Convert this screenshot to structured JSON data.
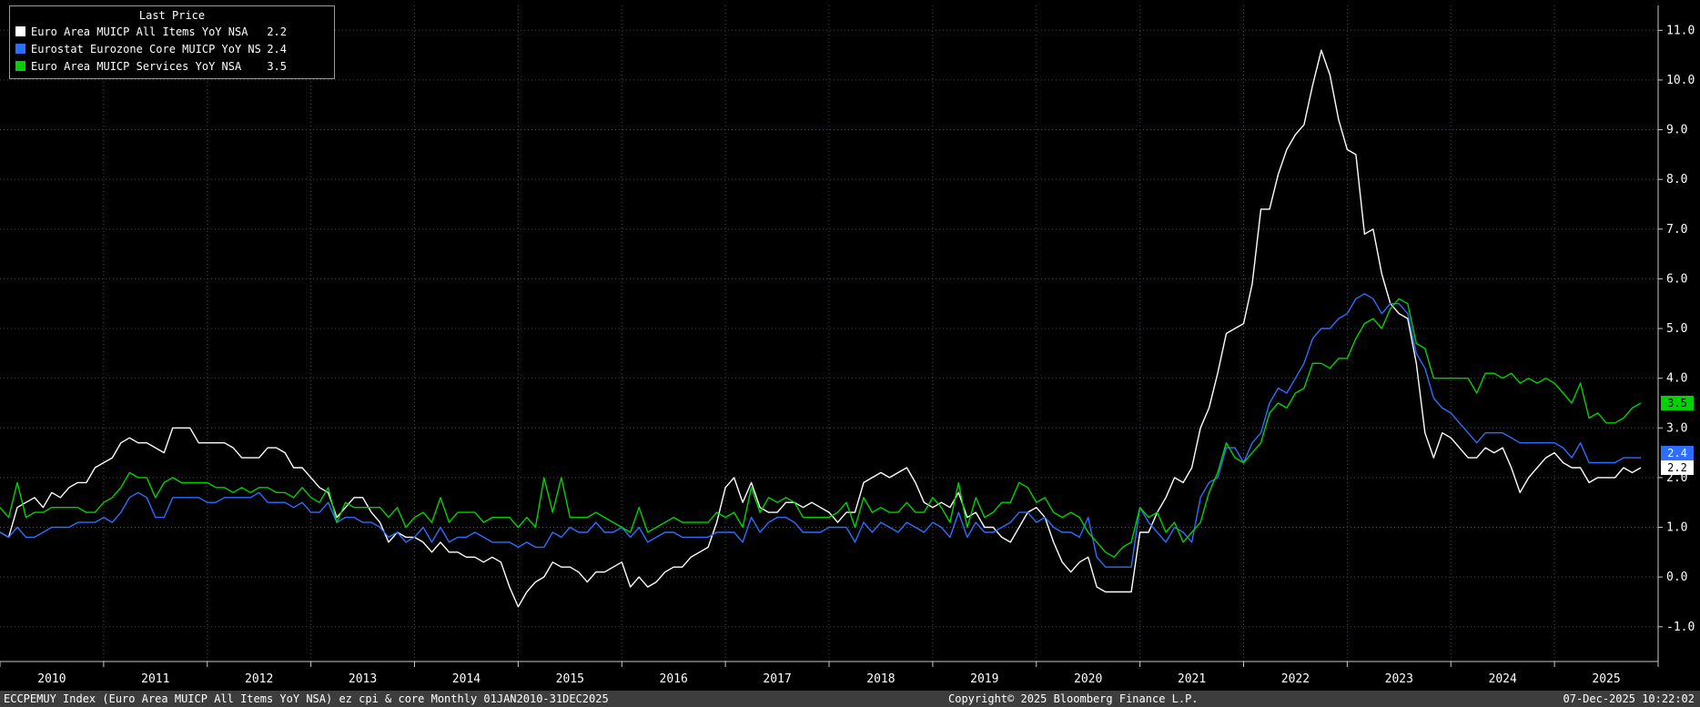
{
  "legend": {
    "title": "Last Price",
    "items": [
      {
        "label": "Euro Area MUICP All Items YoY NSA",
        "value": "2.2",
        "color": "#ffffff"
      },
      {
        "label": "Eurostat Eurozone Core MUICP YoY NSA",
        "value": "2.4",
        "color": "#2d6eff"
      },
      {
        "label": "Euro Area MUICP Services YoY NSA",
        "value": "3.5",
        "color": "#00d300"
      }
    ]
  },
  "price_labels": [
    {
      "text": "3.5",
      "value": 3.5,
      "bg": "#00d300",
      "fg": "#000000"
    },
    {
      "text": "2.4",
      "value": 2.4,
      "bg": "#2d6eff",
      "fg": "#ffffff"
    },
    {
      "text": "2.2",
      "value": 2.2,
      "bg": "#ffffff",
      "fg": "#000000"
    }
  ],
  "footer": {
    "left": "ECCPEMUY Index (Euro Area MUICP All Items YoY NSA) ez cpi & core Monthly 01JAN2010-31DEC2025",
    "copyright": "Copyright© 2025 Bloomberg Finance L.P.",
    "timestamp": "07-Dec-2025 10:22:02"
  },
  "chart_data": {
    "type": "line",
    "title": "",
    "xlabel": "",
    "ylabel": "",
    "frequency": "monthly",
    "period": "01JAN2010-31DEC2025",
    "x_start": "2010-01",
    "x_end": "2025-11",
    "grid": "dotted",
    "legend_position": "top-left",
    "y_axis_side": "right",
    "ylim": [
      -1.7,
      11.5
    ],
    "y_ticks": [
      -1,
      0,
      1,
      2,
      3,
      4,
      5,
      6,
      7,
      8,
      9,
      10,
      11
    ],
    "y_tick_labels": [
      "-1.0",
      "0.0",
      "1.0",
      "2.0",
      "3.0",
      "4.0",
      "5.0",
      "6.0",
      "7.0",
      "8.0",
      "9.0",
      "10.0",
      "11.0"
    ],
    "x_year_labels": [
      "2010",
      "2011",
      "2012",
      "2013",
      "2014",
      "2015",
      "2016",
      "2017",
      "2018",
      "2019",
      "2020",
      "2021",
      "2022",
      "2023",
      "2024",
      "2025"
    ],
    "series": [
      {
        "name": "Euro Area MUICP All Items YoY NSA",
        "color": "#ffffff",
        "last": 2.2,
        "values": [
          0.9,
          0.8,
          1.4,
          1.5,
          1.6,
          1.4,
          1.7,
          1.6,
          1.8,
          1.9,
          1.9,
          2.2,
          2.3,
          2.4,
          2.7,
          2.8,
          2.7,
          2.7,
          2.6,
          2.5,
          3.0,
          3.0,
          3.0,
          2.7,
          2.7,
          2.7,
          2.7,
          2.6,
          2.4,
          2.4,
          2.4,
          2.6,
          2.6,
          2.5,
          2.2,
          2.2,
          2.0,
          1.8,
          1.7,
          1.2,
          1.4,
          1.6,
          1.6,
          1.3,
          1.1,
          0.7,
          0.9,
          0.8,
          0.8,
          0.7,
          0.5,
          0.7,
          0.5,
          0.5,
          0.4,
          0.4,
          0.3,
          0.4,
          0.3,
          -0.2,
          -0.6,
          -0.3,
          -0.1,
          0.0,
          0.3,
          0.2,
          0.2,
          0.1,
          -0.1,
          0.1,
          0.1,
          0.2,
          0.3,
          -0.2,
          0.0,
          -0.2,
          -0.1,
          0.1,
          0.2,
          0.2,
          0.4,
          0.5,
          0.6,
          1.1,
          1.8,
          2.0,
          1.5,
          1.9,
          1.4,
          1.3,
          1.3,
          1.5,
          1.5,
          1.4,
          1.5,
          1.4,
          1.3,
          1.1,
          1.3,
          1.3,
          1.9,
          2.0,
          2.1,
          2.0,
          2.1,
          2.2,
          1.9,
          1.5,
          1.4,
          1.5,
          1.4,
          1.7,
          1.2,
          1.3,
          1.0,
          1.0,
          0.8,
          0.7,
          1.0,
          1.3,
          1.4,
          1.2,
          0.7,
          0.3,
          0.1,
          0.3,
          0.4,
          -0.2,
          -0.3,
          -0.3,
          -0.3,
          -0.3,
          0.9,
          0.9,
          1.3,
          1.6,
          2.0,
          1.9,
          2.2,
          3.0,
          3.4,
          4.1,
          4.9,
          5.0,
          5.1,
          5.9,
          7.4,
          7.4,
          8.1,
          8.6,
          8.9,
          9.1,
          9.9,
          10.6,
          10.1,
          9.2,
          8.6,
          8.5,
          6.9,
          7.0,
          6.1,
          5.5,
          5.3,
          5.2,
          4.3,
          2.9,
          2.4,
          2.9,
          2.8,
          2.6,
          2.4,
          2.4,
          2.6,
          2.5,
          2.6,
          2.2,
          1.7,
          2.0,
          2.2,
          2.4,
          2.5,
          2.3,
          2.2,
          2.2,
          1.9,
          2.0,
          2.0,
          2.0,
          2.2,
          2.1,
          2.2
        ]
      },
      {
        "name": "Eurostat Eurozone Core MUICP YoY NSA",
        "color": "#2d6eff",
        "last": 2.4,
        "values": [
          0.9,
          0.8,
          1.0,
          0.8,
          0.8,
          0.9,
          1.0,
          1.0,
          1.0,
          1.1,
          1.1,
          1.1,
          1.2,
          1.1,
          1.3,
          1.6,
          1.7,
          1.6,
          1.2,
          1.2,
          1.6,
          1.6,
          1.6,
          1.6,
          1.5,
          1.5,
          1.6,
          1.6,
          1.6,
          1.6,
          1.7,
          1.5,
          1.5,
          1.5,
          1.4,
          1.5,
          1.3,
          1.3,
          1.5,
          1.1,
          1.2,
          1.2,
          1.1,
          1.1,
          1.0,
          0.8,
          0.9,
          0.7,
          0.8,
          1.0,
          0.7,
          1.0,
          0.7,
          0.8,
          0.8,
          0.9,
          0.8,
          0.7,
          0.7,
          0.7,
          0.6,
          0.7,
          0.6,
          0.6,
          0.9,
          0.8,
          1.0,
          0.9,
          0.9,
          1.1,
          0.9,
          0.9,
          1.0,
          0.8,
          1.0,
          0.7,
          0.8,
          0.9,
          0.9,
          0.8,
          0.8,
          0.8,
          0.8,
          0.9,
          0.9,
          0.9,
          0.7,
          1.2,
          0.9,
          1.1,
          1.2,
          1.2,
          1.1,
          0.9,
          0.9,
          0.9,
          1.0,
          1.0,
          1.0,
          0.7,
          1.1,
          0.9,
          1.1,
          1.0,
          0.9,
          1.1,
          1.0,
          0.9,
          1.1,
          1.0,
          0.8,
          1.3,
          0.8,
          1.1,
          0.9,
          0.9,
          1.0,
          1.1,
          1.3,
          1.3,
          1.1,
          1.2,
          1.0,
          0.9,
          0.9,
          0.8,
          1.2,
          0.4,
          0.2,
          0.2,
          0.2,
          0.2,
          1.4,
          1.1,
          0.9,
          0.7,
          1.0,
          0.9,
          0.7,
          1.6,
          1.9,
          2.0,
          2.6,
          2.6,
          2.3,
          2.7,
          2.9,
          3.5,
          3.8,
          3.7,
          4.0,
          4.3,
          4.8,
          5.0,
          5.0,
          5.2,
          5.3,
          5.6,
          5.7,
          5.6,
          5.3,
          5.5,
          5.5,
          5.3,
          4.5,
          4.2,
          3.6,
          3.4,
          3.3,
          3.1,
          2.9,
          2.7,
          2.9,
          2.9,
          2.9,
          2.8,
          2.7,
          2.7,
          2.7,
          2.7,
          2.7,
          2.6,
          2.4,
          2.7,
          2.3,
          2.3,
          2.3,
          2.3,
          2.4,
          2.4,
          2.4
        ]
      },
      {
        "name": "Euro Area MUICP Services YoY NSA",
        "color": "#00d300",
        "last": 3.5,
        "values": [
          1.4,
          1.2,
          1.9,
          1.2,
          1.3,
          1.3,
          1.4,
          1.4,
          1.4,
          1.4,
          1.3,
          1.3,
          1.5,
          1.6,
          1.8,
          2.1,
          2.0,
          2.0,
          1.6,
          1.9,
          2.0,
          1.9,
          1.9,
          1.9,
          1.9,
          1.8,
          1.8,
          1.7,
          1.8,
          1.7,
          1.8,
          1.8,
          1.7,
          1.7,
          1.6,
          1.8,
          1.6,
          1.5,
          1.8,
          1.1,
          1.5,
          1.4,
          1.4,
          1.4,
          1.4,
          1.2,
          1.4,
          1.0,
          1.2,
          1.3,
          1.1,
          1.6,
          1.1,
          1.3,
          1.3,
          1.3,
          1.1,
          1.2,
          1.2,
          1.2,
          1.0,
          1.2,
          1.0,
          2.0,
          1.3,
          2.0,
          1.2,
          1.2,
          1.2,
          1.3,
          1.2,
          1.1,
          1.0,
          0.9,
          1.4,
          0.9,
          1.0,
          1.1,
          1.2,
          1.1,
          1.1,
          1.1,
          1.1,
          1.3,
          1.2,
          1.3,
          1.0,
          1.8,
          1.3,
          1.6,
          1.5,
          1.6,
          1.5,
          1.2,
          1.2,
          1.2,
          1.2,
          1.3,
          1.5,
          1.0,
          1.6,
          1.3,
          1.4,
          1.3,
          1.3,
          1.5,
          1.3,
          1.3,
          1.6,
          1.4,
          1.1,
          1.9,
          1.0,
          1.6,
          1.2,
          1.3,
          1.5,
          1.5,
          1.9,
          1.8,
          1.5,
          1.6,
          1.3,
          1.2,
          1.3,
          1.2,
          0.9,
          0.7,
          0.5,
          0.4,
          0.6,
          0.7,
          1.4,
          1.2,
          1.3,
          0.9,
          1.1,
          0.7,
          0.9,
          1.1,
          1.7,
          2.1,
          2.7,
          2.4,
          2.3,
          2.5,
          2.7,
          3.3,
          3.5,
          3.4,
          3.7,
          3.8,
          4.3,
          4.3,
          4.2,
          4.4,
          4.4,
          4.8,
          5.1,
          5.2,
          5.0,
          5.4,
          5.6,
          5.5,
          4.7,
          4.6,
          4.0,
          4.0,
          4.0,
          4.0,
          4.0,
          3.7,
          4.1,
          4.1,
          4.0,
          4.1,
          3.9,
          4.0,
          3.9,
          4.0,
          3.9,
          3.7,
          3.5,
          3.9,
          3.2,
          3.3,
          3.1,
          3.1,
          3.2,
          3.4,
          3.5
        ]
      }
    ]
  }
}
